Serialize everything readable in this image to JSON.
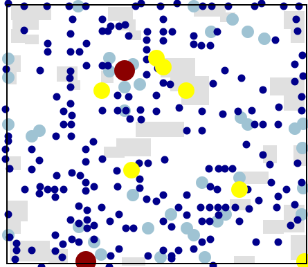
{
  "scene": {
    "name": "agent-simulation-grid",
    "colors": {
      "background": "#ffffff",
      "patch": "#e0e0e0",
      "frame": "#000000",
      "dark_blue_agent": "#00008b",
      "light_blue_agent": "#9fc3d3",
      "yellow_agent": "#ffff00",
      "dark_red_agent": "#8b0000"
    }
  },
  "agents": {
    "dark_blue_count": 229,
    "light_blue_count": 39,
    "yellow_count": 7,
    "dark_red_count": 2
  }
}
